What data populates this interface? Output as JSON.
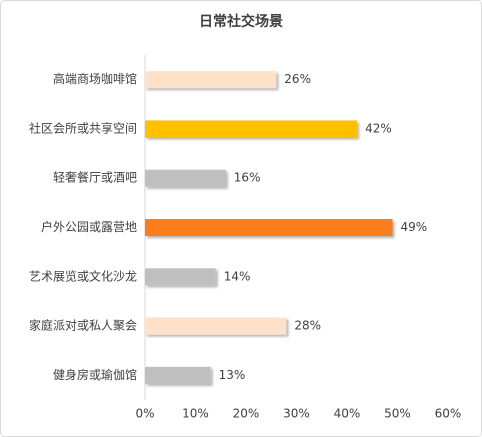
{
  "chart_data": {
    "type": "hbar",
    "title": "日常社交场景",
    "categories": [
      "高端商场咖啡馆",
      "社区会所或共享空间",
      "轻奢餐厅或酒吧",
      "户外公园或露营地",
      "艺术展览或文化沙龙",
      "家庭派对或私人聚会",
      "健身房或瑜伽馆"
    ],
    "values": [
      26,
      42,
      16,
      49,
      14,
      28,
      13
    ],
    "value_labels": [
      "26%",
      "42%",
      "16%",
      "49%",
      "14%",
      "28%",
      "13%"
    ],
    "colors": [
      "#fde2c9",
      "#ffc000",
      "#bfbfbf",
      "#fb7d1c",
      "#bfbfbf",
      "#fde2c9",
      "#bfbfbf"
    ],
    "xlim": [
      0,
      60
    ],
    "xticks": [
      {
        "value": 0,
        "label": "0%"
      },
      {
        "value": 10,
        "label": "10%"
      },
      {
        "value": 20,
        "label": "20%"
      },
      {
        "value": 30,
        "label": "30%"
      },
      {
        "value": 40,
        "label": "40%"
      },
      {
        "value": 50,
        "label": "50%"
      },
      {
        "value": 60,
        "label": "60%"
      }
    ]
  }
}
